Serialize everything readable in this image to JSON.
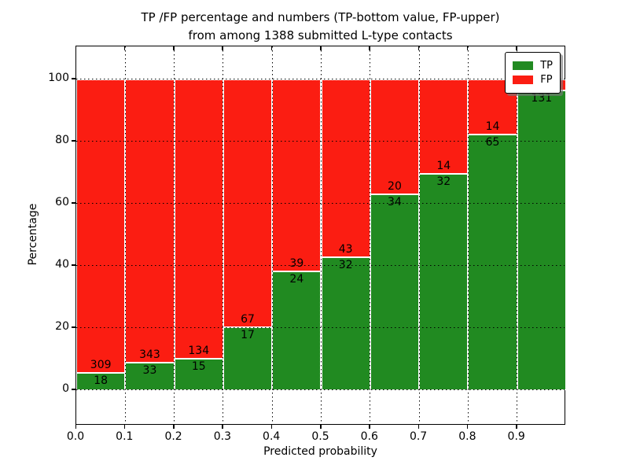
{
  "figure": {
    "title_line1": "TP /FP percentage and numbers (TP-bottom value, FP-upper)",
    "title_line2": "from among 1388 submitted L-type contacts"
  },
  "axes": {
    "ylabel": "Percentage",
    "xlabel": "Predicted probability",
    "ytick_labels": [
      "0",
      "20",
      "40",
      "60",
      "80",
      "100"
    ],
    "ytick_values": [
      0,
      20,
      40,
      60,
      80,
      100
    ],
    "xtick_labels": [
      "0.0",
      "0.1",
      "0.2",
      "0.3",
      "0.4",
      "0.5",
      "0.6",
      "0.7",
      "0.8",
      "0.9"
    ],
    "xtick_values": [
      0.0,
      0.1,
      0.2,
      0.3,
      0.4,
      0.5,
      0.6,
      0.7,
      0.8,
      0.9
    ],
    "ylim": [
      -11.4,
      110.6
    ],
    "xlim": [
      0,
      1
    ],
    "grid": "dotted"
  },
  "legend": {
    "position": "upper-right",
    "items": [
      {
        "label": "TP",
        "color": "#218a21"
      },
      {
        "label": "FP",
        "color": "#fb1d12"
      }
    ]
  },
  "colors": {
    "tp": "#218a21",
    "fp": "#fb1d12",
    "bar_edge": "#ffffff",
    "text": "#000000",
    "background": "#ffffff"
  },
  "chart_data": {
    "type": "bar",
    "stacked": true,
    "normalized_to_percent": true,
    "bin_width": 0.1,
    "bin_start": [
      0.0,
      0.1,
      0.2,
      0.3,
      0.4,
      0.5,
      0.6,
      0.7,
      0.8,
      0.9
    ],
    "series": [
      {
        "name": "TP",
        "counts": [
          18,
          33,
          15,
          17,
          24,
          32,
          34,
          32,
          65,
          131
        ]
      },
      {
        "name": "FP",
        "counts": [
          309,
          343,
          134,
          67,
          39,
          43,
          20,
          14,
          14,
          null
        ]
      }
    ],
    "tp_percent": [
      5.5,
      8.78,
      10.07,
      20.24,
      38.1,
      42.67,
      62.96,
      69.57,
      82.28,
      96.3
    ],
    "fp_label_visible": [
      true,
      true,
      true,
      true,
      true,
      true,
      true,
      true,
      true,
      false
    ],
    "fp_top_percent": 100
  }
}
